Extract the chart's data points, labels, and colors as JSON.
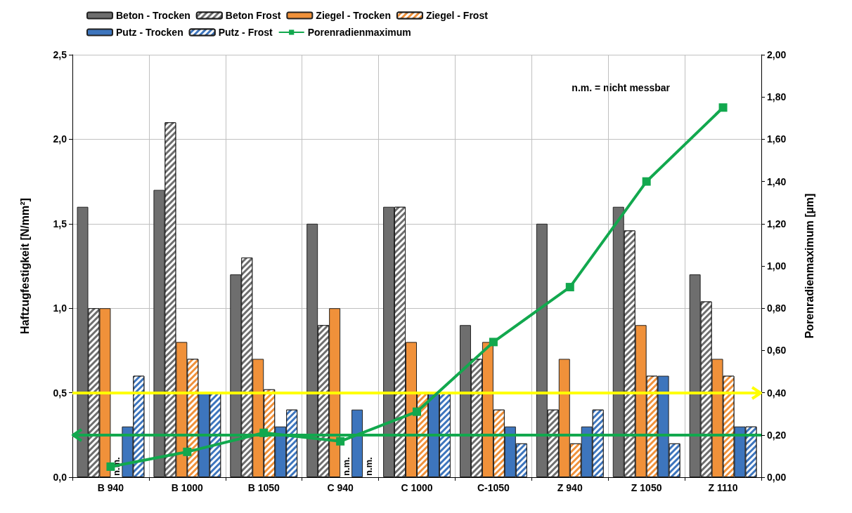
{
  "chart_data": {
    "type": "bar",
    "categories": [
      "B 940",
      "B 1000",
      "B 1050",
      "C 940",
      "C 1000",
      "C-1050",
      "Z 940",
      "Z 1050",
      "Z 1110"
    ],
    "ylabel": "Haftzugfestigkeit [N/mm²]",
    "y2label": "Porenradienmaximum [µm]",
    "series": [
      {
        "name": "Beton - Trocken",
        "color": "#6e6e6e",
        "values": [
          1.6,
          1.7,
          1.2,
          1.5,
          1.6,
          0.9,
          1.5,
          1.6,
          1.2
        ]
      },
      {
        "name": "Beton Frost",
        "color": "#6e6e6e",
        "values": [
          1.0,
          2.1,
          1.3,
          0.9,
          1.6,
          0.7,
          0.4,
          1.46,
          1.04
        ]
      },
      {
        "name": "Ziegel - Trocken",
        "color": "#f0913a",
        "values": [
          1.0,
          0.8,
          0.7,
          1.0,
          0.8,
          0.8,
          0.7,
          0.9,
          0.7
        ]
      },
      {
        "name": "Ziegel - Frost",
        "color": "#f0913a",
        "values": [
          null,
          0.7,
          0.52,
          null,
          0.5,
          0.4,
          0.2,
          0.6,
          0.6
        ]
      },
      {
        "name": "Putz - Trocken",
        "color": "#3d75bd",
        "values": [
          0.3,
          0.5,
          0.3,
          0.4,
          0.5,
          0.3,
          0.3,
          0.6,
          0.3
        ]
      },
      {
        "name": "Putz - Frost",
        "color": "#3d75bd",
        "values": [
          0.6,
          0.5,
          0.4,
          null,
          0.5,
          0.2,
          0.4,
          0.2,
          0.3
        ]
      },
      {
        "name": "Porenradienmaximum",
        "type": "line",
        "axis": "y2",
        "color": "#12a84e",
        "marker": "square",
        "line_style": "solid",
        "values": [
          0.05,
          0.12,
          0.21,
          0.17,
          0.31,
          0.64,
          0.9,
          1.4,
          1.75
        ]
      }
    ],
    "ylim": [
      0,
      2.5
    ],
    "yticks": [
      {
        "value": 0,
        "label": "0,0"
      },
      {
        "value": 0.5,
        "label": "0,5"
      },
      {
        "value": 1,
        "label": "1,0"
      },
      {
        "value": 1.5,
        "label": "1,5"
      },
      {
        "value": 2,
        "label": "2,0"
      },
      {
        "value": 2.5,
        "label": "2,5"
      }
    ],
    "y2lim": [
      0,
      2
    ],
    "y2ticks": [
      {
        "value": 0,
        "label": "0,00"
      },
      {
        "value": 0.2,
        "label": "0,20"
      },
      {
        "value": 0.4,
        "label": "0,40"
      },
      {
        "value": 0.6,
        "label": "0,60"
      },
      {
        "value": 0.8,
        "label": "0,80"
      },
      {
        "value": 1,
        "label": "1,00"
      },
      {
        "value": 1.2,
        "label": "1,20"
      },
      {
        "value": 1.4,
        "label": "1,40"
      },
      {
        "value": 1.6,
        "label": "1,60"
      },
      {
        "value": 1.8,
        "label": "1,80"
      },
      {
        "value": 2,
        "label": "2,00"
      }
    ],
    "ref_lines": [
      {
        "axis": "y",
        "value": 0.5,
        "color": "#ffff00"
      },
      {
        "axis": "y2",
        "value": 0.2,
        "color": "#12a84e"
      }
    ],
    "annotations": [
      {
        "text": "n.m.",
        "x": "B 940",
        "y": 0
      },
      {
        "text": "n.m.",
        "x": "C 940",
        "y": 0
      },
      {
        "text": "n.m.",
        "x": "C 940",
        "y": 0
      },
      "n.m. = nicht messbar"
    ],
    "grid": true,
    "legend": "top"
  }
}
